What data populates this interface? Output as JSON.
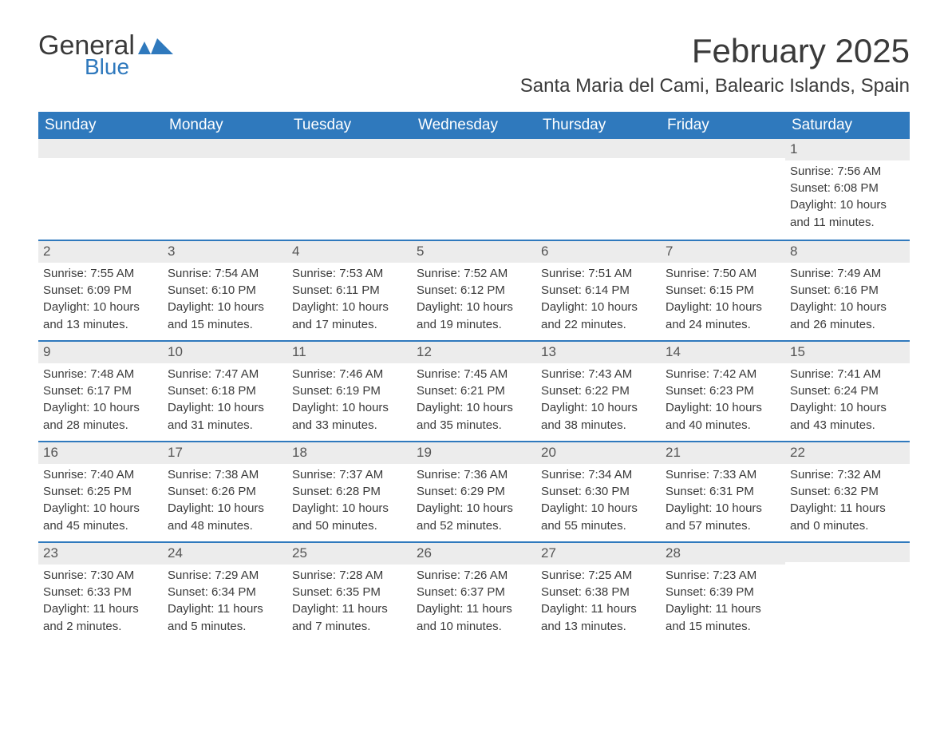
{
  "logo": {
    "text_main": "General",
    "text_sub": "Blue",
    "accent_color": "#2f79bd"
  },
  "title": {
    "month": "February 2025",
    "location": "Santa Maria del Cami, Balearic Islands, Spain"
  },
  "colors": {
    "header_bg": "#2f79bd",
    "header_text": "#ffffff",
    "daynum_bg": "#ececec",
    "border": "#2f79bd",
    "body_text": "#3a3a3a"
  },
  "day_names": [
    "Sunday",
    "Monday",
    "Tuesday",
    "Wednesday",
    "Thursday",
    "Friday",
    "Saturday"
  ],
  "weeks": [
    [
      {
        "empty": true
      },
      {
        "empty": true
      },
      {
        "empty": true
      },
      {
        "empty": true
      },
      {
        "empty": true
      },
      {
        "empty": true
      },
      {
        "day": "1",
        "sunrise": "Sunrise: 7:56 AM",
        "sunset": "Sunset: 6:08 PM",
        "daylight1": "Daylight: 10 hours",
        "daylight2": "and 11 minutes."
      }
    ],
    [
      {
        "day": "2",
        "sunrise": "Sunrise: 7:55 AM",
        "sunset": "Sunset: 6:09 PM",
        "daylight1": "Daylight: 10 hours",
        "daylight2": "and 13 minutes."
      },
      {
        "day": "3",
        "sunrise": "Sunrise: 7:54 AM",
        "sunset": "Sunset: 6:10 PM",
        "daylight1": "Daylight: 10 hours",
        "daylight2": "and 15 minutes."
      },
      {
        "day": "4",
        "sunrise": "Sunrise: 7:53 AM",
        "sunset": "Sunset: 6:11 PM",
        "daylight1": "Daylight: 10 hours",
        "daylight2": "and 17 minutes."
      },
      {
        "day": "5",
        "sunrise": "Sunrise: 7:52 AM",
        "sunset": "Sunset: 6:12 PM",
        "daylight1": "Daylight: 10 hours",
        "daylight2": "and 19 minutes."
      },
      {
        "day": "6",
        "sunrise": "Sunrise: 7:51 AM",
        "sunset": "Sunset: 6:14 PM",
        "daylight1": "Daylight: 10 hours",
        "daylight2": "and 22 minutes."
      },
      {
        "day": "7",
        "sunrise": "Sunrise: 7:50 AM",
        "sunset": "Sunset: 6:15 PM",
        "daylight1": "Daylight: 10 hours",
        "daylight2": "and 24 minutes."
      },
      {
        "day": "8",
        "sunrise": "Sunrise: 7:49 AM",
        "sunset": "Sunset: 6:16 PM",
        "daylight1": "Daylight: 10 hours",
        "daylight2": "and 26 minutes."
      }
    ],
    [
      {
        "day": "9",
        "sunrise": "Sunrise: 7:48 AM",
        "sunset": "Sunset: 6:17 PM",
        "daylight1": "Daylight: 10 hours",
        "daylight2": "and 28 minutes."
      },
      {
        "day": "10",
        "sunrise": "Sunrise: 7:47 AM",
        "sunset": "Sunset: 6:18 PM",
        "daylight1": "Daylight: 10 hours",
        "daylight2": "and 31 minutes."
      },
      {
        "day": "11",
        "sunrise": "Sunrise: 7:46 AM",
        "sunset": "Sunset: 6:19 PM",
        "daylight1": "Daylight: 10 hours",
        "daylight2": "and 33 minutes."
      },
      {
        "day": "12",
        "sunrise": "Sunrise: 7:45 AM",
        "sunset": "Sunset: 6:21 PM",
        "daylight1": "Daylight: 10 hours",
        "daylight2": "and 35 minutes."
      },
      {
        "day": "13",
        "sunrise": "Sunrise: 7:43 AM",
        "sunset": "Sunset: 6:22 PM",
        "daylight1": "Daylight: 10 hours",
        "daylight2": "and 38 minutes."
      },
      {
        "day": "14",
        "sunrise": "Sunrise: 7:42 AM",
        "sunset": "Sunset: 6:23 PM",
        "daylight1": "Daylight: 10 hours",
        "daylight2": "and 40 minutes."
      },
      {
        "day": "15",
        "sunrise": "Sunrise: 7:41 AM",
        "sunset": "Sunset: 6:24 PM",
        "daylight1": "Daylight: 10 hours",
        "daylight2": "and 43 minutes."
      }
    ],
    [
      {
        "day": "16",
        "sunrise": "Sunrise: 7:40 AM",
        "sunset": "Sunset: 6:25 PM",
        "daylight1": "Daylight: 10 hours",
        "daylight2": "and 45 minutes."
      },
      {
        "day": "17",
        "sunrise": "Sunrise: 7:38 AM",
        "sunset": "Sunset: 6:26 PM",
        "daylight1": "Daylight: 10 hours",
        "daylight2": "and 48 minutes."
      },
      {
        "day": "18",
        "sunrise": "Sunrise: 7:37 AM",
        "sunset": "Sunset: 6:28 PM",
        "daylight1": "Daylight: 10 hours",
        "daylight2": "and 50 minutes."
      },
      {
        "day": "19",
        "sunrise": "Sunrise: 7:36 AM",
        "sunset": "Sunset: 6:29 PM",
        "daylight1": "Daylight: 10 hours",
        "daylight2": "and 52 minutes."
      },
      {
        "day": "20",
        "sunrise": "Sunrise: 7:34 AM",
        "sunset": "Sunset: 6:30 PM",
        "daylight1": "Daylight: 10 hours",
        "daylight2": "and 55 minutes."
      },
      {
        "day": "21",
        "sunrise": "Sunrise: 7:33 AM",
        "sunset": "Sunset: 6:31 PM",
        "daylight1": "Daylight: 10 hours",
        "daylight2": "and 57 minutes."
      },
      {
        "day": "22",
        "sunrise": "Sunrise: 7:32 AM",
        "sunset": "Sunset: 6:32 PM",
        "daylight1": "Daylight: 11 hours",
        "daylight2": "and 0 minutes."
      }
    ],
    [
      {
        "day": "23",
        "sunrise": "Sunrise: 7:30 AM",
        "sunset": "Sunset: 6:33 PM",
        "daylight1": "Daylight: 11 hours",
        "daylight2": "and 2 minutes."
      },
      {
        "day": "24",
        "sunrise": "Sunrise: 7:29 AM",
        "sunset": "Sunset: 6:34 PM",
        "daylight1": "Daylight: 11 hours",
        "daylight2": "and 5 minutes."
      },
      {
        "day": "25",
        "sunrise": "Sunrise: 7:28 AM",
        "sunset": "Sunset: 6:35 PM",
        "daylight1": "Daylight: 11 hours",
        "daylight2": "and 7 minutes."
      },
      {
        "day": "26",
        "sunrise": "Sunrise: 7:26 AM",
        "sunset": "Sunset: 6:37 PM",
        "daylight1": "Daylight: 11 hours",
        "daylight2": "and 10 minutes."
      },
      {
        "day": "27",
        "sunrise": "Sunrise: 7:25 AM",
        "sunset": "Sunset: 6:38 PM",
        "daylight1": "Daylight: 11 hours",
        "daylight2": "and 13 minutes."
      },
      {
        "day": "28",
        "sunrise": "Sunrise: 7:23 AM",
        "sunset": "Sunset: 6:39 PM",
        "daylight1": "Daylight: 11 hours",
        "daylight2": "and 15 minutes."
      },
      {
        "empty": true
      }
    ]
  ]
}
